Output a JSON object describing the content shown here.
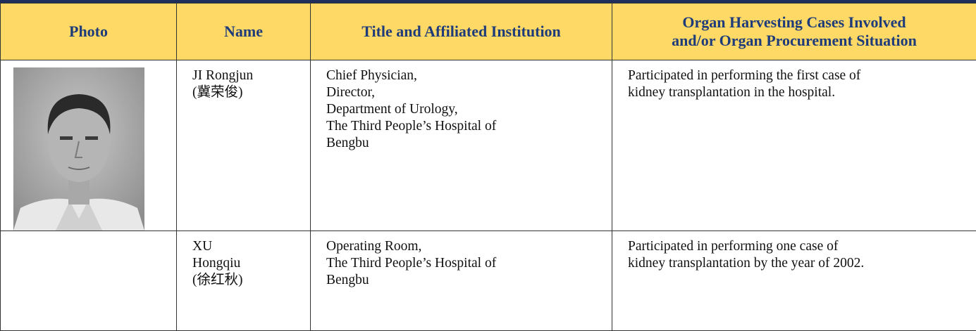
{
  "table": {
    "headers": [
      "Photo",
      "Name",
      "Title and Affiliated Institution",
      [
        "Organ Harvesting Cases Involved",
        "and/or Organ Procurement Situation"
      ]
    ],
    "rows": [
      {
        "name": [
          "JI Rongjun",
          "(冀荣俊)"
        ],
        "title": [
          "Chief Physician,",
          "Director,",
          "Department of Urology,",
          "The Third People’s Hospital of",
          "Bengbu"
        ],
        "cases": [
          "Participated in performing the first case of",
          "kidney transplantation in the hospital."
        ]
      },
      {
        "name": [
          "XU",
          "Hongqiu",
          "(徐红秋)"
        ],
        "title": [
          "Operating Room,",
          "The Third People’s Hospital of",
          "Bengbu"
        ],
        "cases": [
          "Participated in performing one case of",
          "kidney transplantation by the year of 2002."
        ]
      }
    ]
  }
}
